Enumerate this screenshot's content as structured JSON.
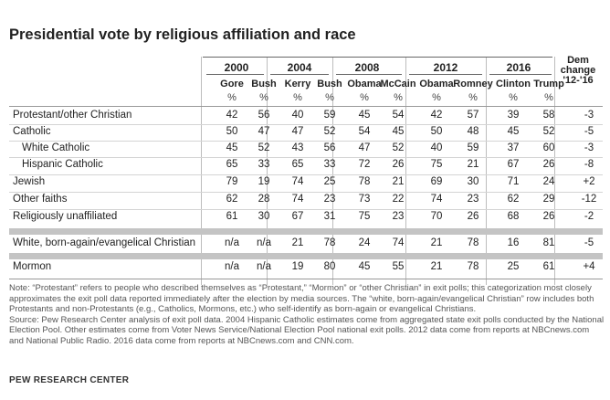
{
  "title": "Presidential vote by religious affiliation and race",
  "years": [
    "2000",
    "2004",
    "2008",
    "2012",
    "2016"
  ],
  "dem_change_header": [
    "Dem",
    "change",
    "'12-'16"
  ],
  "candidates": [
    "Gore",
    "Bush",
    "Kerry",
    "Bush",
    "Obama",
    "McCain",
    "Obama",
    "Romney",
    "Clinton",
    "Trump"
  ],
  "unit": "%",
  "rows": [
    {
      "label": "Protestant/other Christian",
      "values": [
        "42",
        "56",
        "40",
        "59",
        "45",
        "54",
        "42",
        "57",
        "39",
        "58"
      ],
      "change": "-3"
    },
    {
      "label": "Catholic",
      "values": [
        "50",
        "47",
        "47",
        "52",
        "54",
        "45",
        "50",
        "48",
        "45",
        "52"
      ],
      "change": "-5"
    },
    {
      "label": "White Catholic",
      "values": [
        "45",
        "52",
        "43",
        "56",
        "47",
        "52",
        "40",
        "59",
        "37",
        "60"
      ],
      "change": "-3"
    },
    {
      "label": "Hispanic Catholic",
      "values": [
        "65",
        "33",
        "65",
        "33",
        "72",
        "26",
        "75",
        "21",
        "67",
        "26"
      ],
      "change": "-8"
    },
    {
      "label": "Jewish",
      "values": [
        "79",
        "19",
        "74",
        "25",
        "78",
        "21",
        "69",
        "30",
        "71",
        "24"
      ],
      "change": "+2"
    },
    {
      "label": "Other faiths",
      "values": [
        "62",
        "28",
        "74",
        "23",
        "73",
        "22",
        "74",
        "23",
        "62",
        "29"
      ],
      "change": "-12"
    },
    {
      "label": "Religiously unaffiliated",
      "values": [
        "61",
        "30",
        "67",
        "31",
        "75",
        "23",
        "70",
        "26",
        "68",
        "26"
      ],
      "change": "-2"
    },
    {
      "label": "White, born-again/evangelical Christian",
      "values": [
        "n/a",
        "n/a",
        "21",
        "78",
        "24",
        "74",
        "21",
        "78",
        "16",
        "81"
      ],
      "change": "-5"
    },
    {
      "label": "Mormon",
      "values": [
        "n/a",
        "n/a",
        "19",
        "80",
        "45",
        "55",
        "21",
        "78",
        "25",
        "61"
      ],
      "change": "+4"
    }
  ],
  "note": "Note: “Protestant” refers to people who described themselves as “Protestant,” “Mormon” or “other Christian” in exit polls; this categorization most closely approximates the exit poll data reported immediately after the election by media sources. The “white, born-again/evangelical Christian” row includes both Protestants and non-Protestants (e.g., Catholics, Mormons, etc.) who self-identify as born-again or evangelical Christians.",
  "source": "Source: Pew Research Center analysis of exit poll data. 2004 Hispanic Catholic estimates come from aggregated state exit polls conducted by the National Election Pool. Other estimates come from Voter News Service/National Election Pool national exit polls. 2012 data come from reports at NBCnews.com and National Public Radio. 2016 data come from reports at NBCnews.com and CNN.com.",
  "brand": "PEW RESEARCH CENTER"
}
